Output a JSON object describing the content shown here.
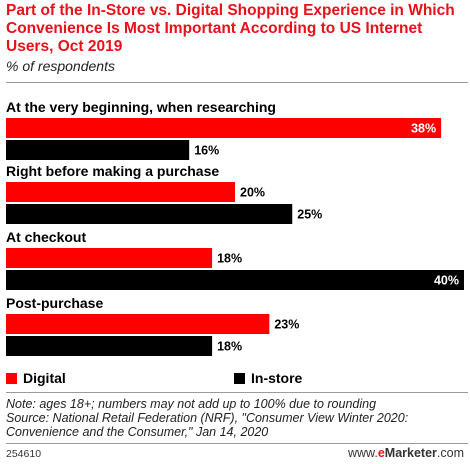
{
  "title": "Part of the In-Store vs. Digital Shopping Experience in Which Convenience Is Most Important According to US Internet Users, Oct 2019",
  "subtitle": "% of respondents",
  "colors": {
    "digital": "#ff0000",
    "instore": "#000000",
    "title": "#e8111a"
  },
  "legend": [
    {
      "name": "Digital",
      "color": "#ff0000"
    },
    {
      "name": "In-store",
      "color": "#000000"
    }
  ],
  "chart_data": {
    "type": "bar",
    "orientation": "horizontal",
    "categories": [
      "At the very beginning, when researching",
      "Right before making a purchase",
      "At checkout",
      "Post-purchase"
    ],
    "series": [
      {
        "name": "Digital",
        "values": [
          38,
          20,
          18,
          23
        ],
        "labels": [
          "38%",
          "20%",
          "18%",
          "23%"
        ]
      },
      {
        "name": "In-store",
        "values": [
          16,
          25,
          40,
          18
        ],
        "labels": [
          "16%",
          "25%",
          "40%",
          "18%"
        ]
      }
    ],
    "xlim": [
      0,
      40
    ],
    "grid": false,
    "legend_position": "bottom"
  },
  "note": "Note: ages 18+; numbers may not add up to 100% due to rounding",
  "source": "Source: National Retail Federation (NRF), \"Consumer View Winter 2020: Convenience and the Consumer,\" Jan 14, 2020",
  "footer": {
    "id": "254610",
    "brand_prefix": "www.",
    "brand_e": "e",
    "brand_name": "Marketer",
    "brand_suffix": ".com"
  }
}
